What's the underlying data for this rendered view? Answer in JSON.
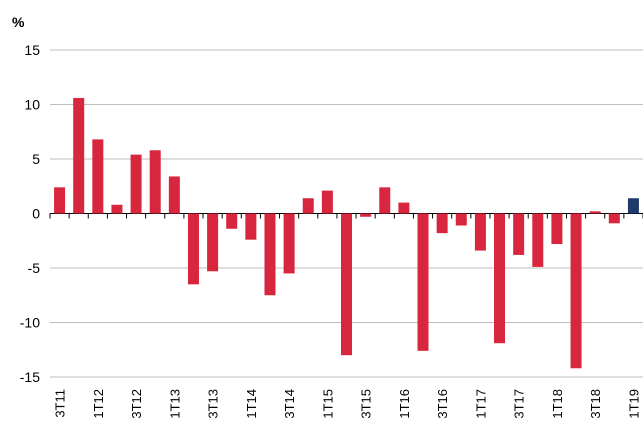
{
  "chart_data": {
    "type": "bar",
    "y_label": "%",
    "categories": [
      "3T11",
      null,
      "1T12",
      null,
      "3T12",
      null,
      "1T13",
      null,
      "3T13",
      null,
      "1T14",
      null,
      "3T14",
      null,
      "1T15",
      null,
      "3T15",
      null,
      "1T16",
      null,
      "3T16",
      null,
      "1T17",
      null,
      "3T17",
      null,
      "1T18",
      null,
      "3T18",
      null,
      "1T19"
    ],
    "values": [
      2.4,
      10.6,
      6.8,
      0.8,
      5.4,
      5.8,
      3.4,
      -6.5,
      -5.3,
      -1.4,
      -2.4,
      -7.5,
      -5.5,
      1.4,
      2.1,
      -13.0,
      -0.3,
      2.4,
      1.0,
      -12.6,
      -1.8,
      -1.1,
      -3.4,
      -11.9,
      -3.8,
      -4.9,
      -2.8,
      -14.2,
      0.2,
      -0.9,
      1.4
    ],
    "colors": [
      "#d7263d",
      "#d7263d",
      "#d7263d",
      "#d7263d",
      "#d7263d",
      "#d7263d",
      "#d7263d",
      "#d7263d",
      "#d7263d",
      "#d7263d",
      "#d7263d",
      "#d7263d",
      "#d7263d",
      "#d7263d",
      "#d7263d",
      "#d7263d",
      "#d7263d",
      "#d7263d",
      "#d7263d",
      "#d7263d",
      "#d7263d",
      "#d7263d",
      "#d7263d",
      "#d7263d",
      "#d7263d",
      "#d7263d",
      "#d7263d",
      "#d7263d",
      "#d7263d",
      "#d7263d",
      "#1f3a6b"
    ],
    "ylim": [
      -15,
      15
    ],
    "yticks": [
      -15,
      -10,
      -5,
      0,
      5,
      10,
      15
    ],
    "grid": true
  }
}
